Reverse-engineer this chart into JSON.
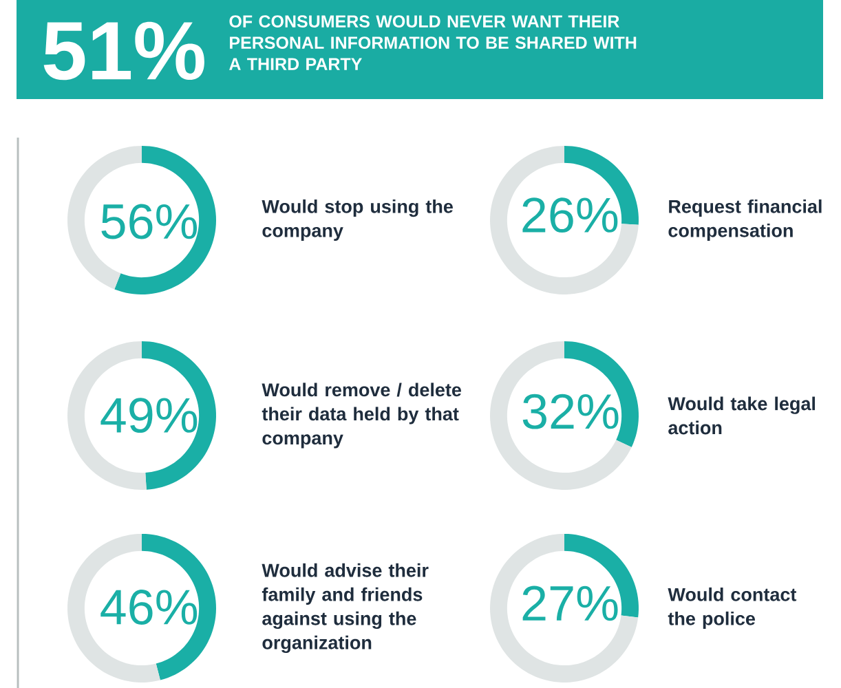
{
  "chart_data": [
    {
      "type": "other",
      "title": "51%",
      "subtitle": "OF CONSUMERS WOULD NEVER WANT THEIR PERSONAL INFORMATION TO BE SHARED WITH A THIRD PARTY"
    },
    {
      "type": "donut",
      "title": "Would stop using the company",
      "categories": [
        null,
        null
      ],
      "values": [
        56,
        44
      ],
      "colors": [
        "#1aafa6",
        "#dfe4e4"
      ],
      "value_labels": [
        "56%",
        null
      ]
    },
    {
      "type": "donut",
      "title": "Request financial compensation",
      "categories": [
        null,
        null
      ],
      "values": [
        26,
        74
      ],
      "colors": [
        "#1aafa6",
        "#dfe4e4"
      ],
      "value_labels": [
        "26%",
        null
      ]
    },
    {
      "type": "donut",
      "title": "Would remove / delete their data held by that company",
      "categories": [
        null,
        null
      ],
      "values": [
        49,
        51
      ],
      "colors": [
        "#1aafa6",
        "#dfe4e4"
      ],
      "value_labels": [
        "49%",
        null
      ]
    },
    {
      "type": "donut",
      "title": "Would take legal action",
      "categories": [
        null,
        null
      ],
      "values": [
        32,
        68
      ],
      "colors": [
        "#1aafa6",
        "#dfe4e4"
      ],
      "value_labels": [
        "32%",
        null
      ]
    },
    {
      "type": "donut",
      "title": "Would advise their family and friends against using the organization",
      "categories": [
        null,
        null
      ],
      "values": [
        46,
        54
      ],
      "colors": [
        "#1aafa6",
        "#dfe4e4"
      ],
      "value_labels": [
        "46%",
        null
      ]
    },
    {
      "type": "donut",
      "title": "Would contact the police",
      "categories": [
        null,
        null
      ],
      "values": [
        27,
        73
      ],
      "colors": [
        "#1aafa6",
        "#dfe4e4"
      ],
      "value_labels": [
        "27%",
        null
      ]
    }
  ]
}
